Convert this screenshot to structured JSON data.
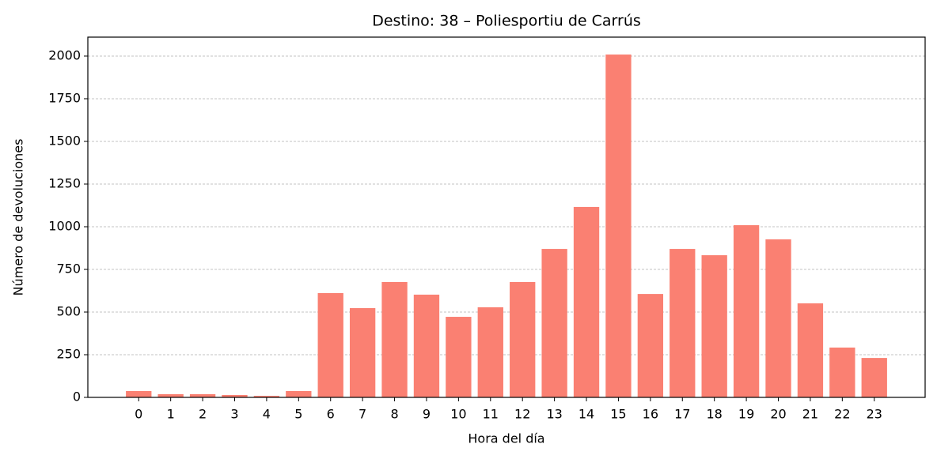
{
  "chart_data": {
    "type": "bar",
    "title": "Destino: 38 – Poliesportiu de Carrús",
    "x_label": "Hora del día",
    "y_label": "Número de devoluciones",
    "categories": [
      "0",
      "1",
      "2",
      "3",
      "4",
      "5",
      "6",
      "7",
      "8",
      "9",
      "10",
      "11",
      "12",
      "13",
      "14",
      "15",
      "16",
      "17",
      "18",
      "19",
      "20",
      "21",
      "22",
      "23"
    ],
    "values": [
      37,
      19,
      19,
      14,
      9,
      37,
      611,
      523,
      676,
      602,
      472,
      528,
      676,
      870,
      1116,
      2009,
      606,
      870,
      833,
      1009,
      926,
      551,
      292,
      231
    ],
    "color": "#fa8072",
    "ylim": [
      0,
      2111
    ],
    "yticks": [
      0,
      250,
      500,
      750,
      1000,
      1250,
      1500,
      1750,
      2000
    ],
    "grid": true
  }
}
